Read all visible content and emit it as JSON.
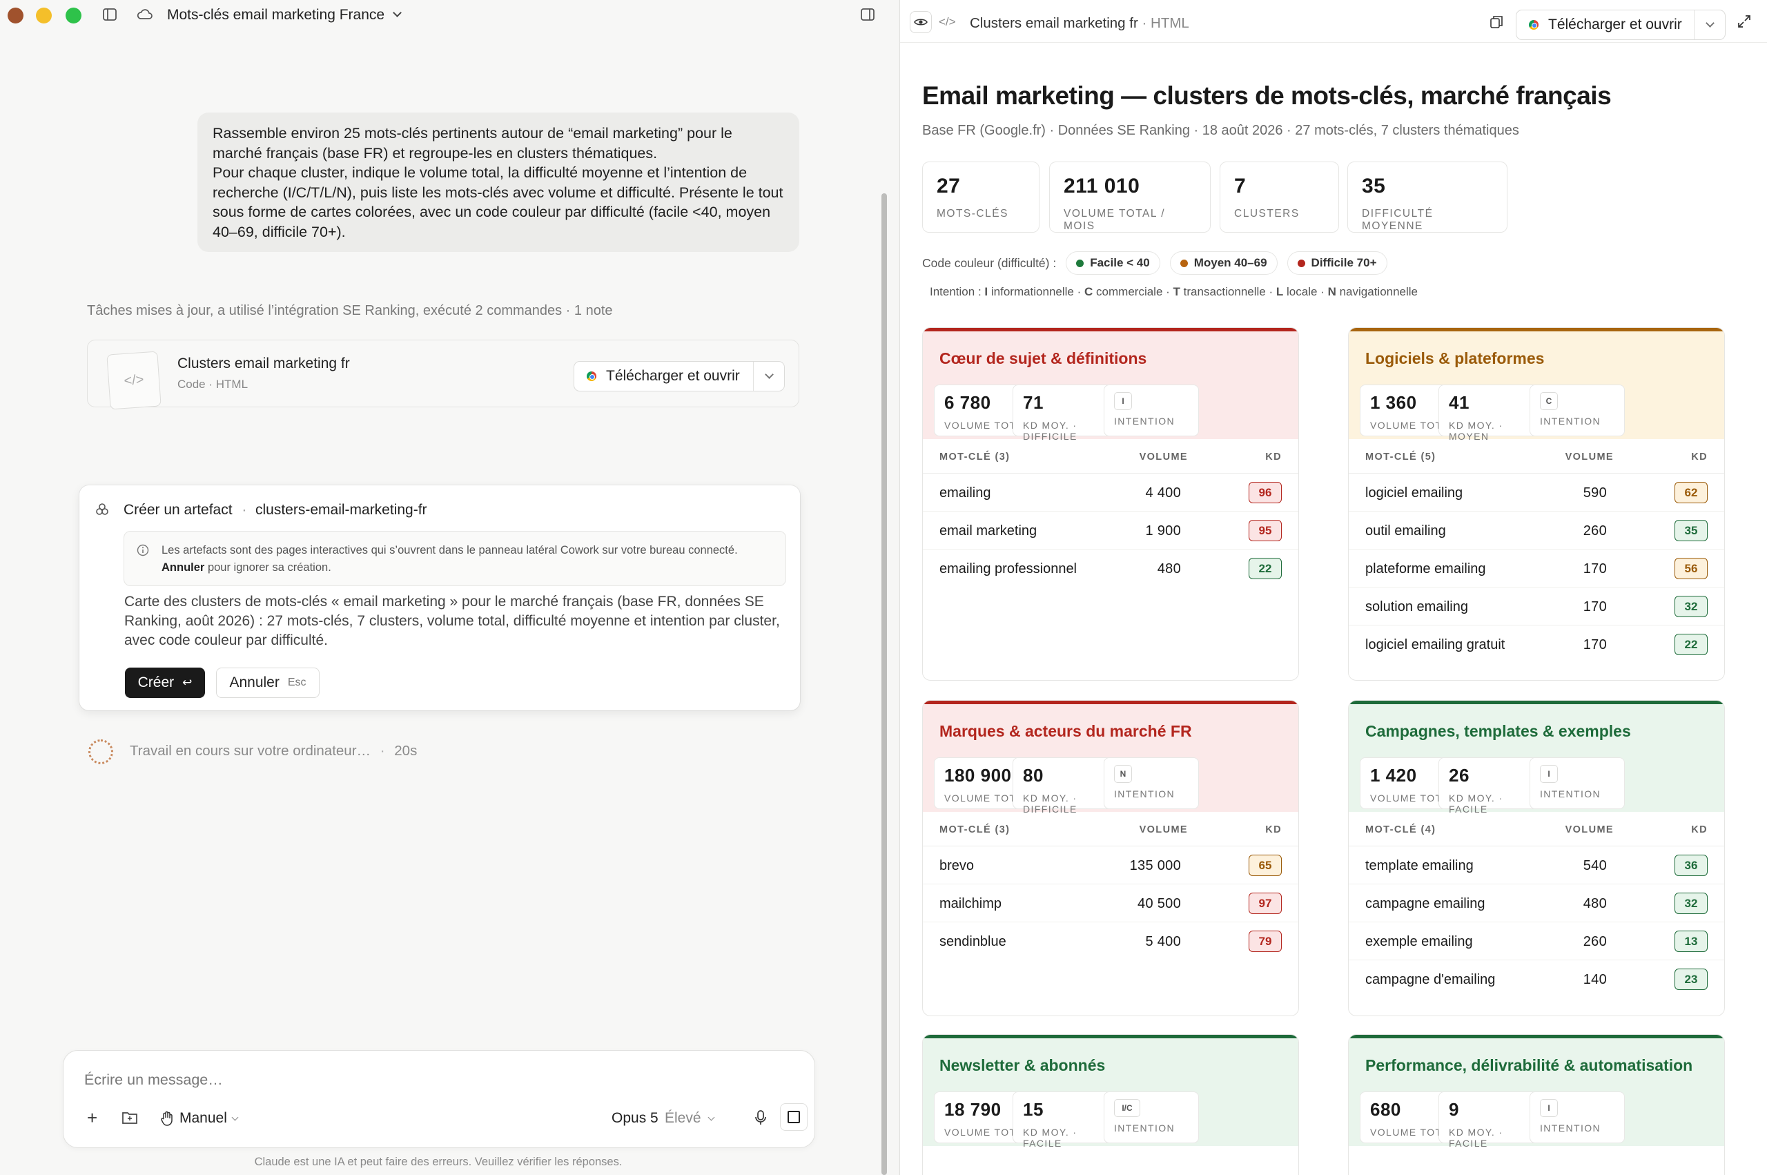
{
  "window": {
    "title": "Mots-clés email marketing France"
  },
  "chat": {
    "user_message": "Rassemble environ 25 mots-clés pertinents autour de “email marketing” pour le marché français (base FR) et regroupe-les en clusters thématiques.\nPour chaque cluster, indique le volume total, la difficulté moyenne et l’intention de recherche (I/C/T/L/N), puis liste les mots-clés avec volume et difficulté. Présente le tout sous forme de cartes colorées, avec un code couleur par difficulté (facile <40, moyen 40–69, difficile 70+).",
    "status_line": "Tâches mises à jour, a utilisé l’intégration SE Ranking, exécuté 2 commandes · 1 note",
    "artifact": {
      "name": "Clusters email marketing fr",
      "sub": "Code · HTML",
      "download_label": "Télécharger et ouvrir"
    },
    "create_card": {
      "title": "Créer un artefact",
      "separator": "·",
      "slug": "clusters-email-marketing-fr",
      "note_text": "Les artefacts sont des pages interactives qui s’ouvrent dans le panneau latéral Cowork sur votre bureau connecté.",
      "note_cancel_bold": "Annuler",
      "note_cancel_rest": "pour ignorer sa création.",
      "description": "Carte des clusters de mots-clés « email marketing » pour le marché français (base FR, données SE Ranking, août 2026) : 27 mots-clés, 7 clusters, volume total, difficulté moyenne et intention par cluster, avec code couleur par difficulté.",
      "create_label": "Créer",
      "create_key": "↩",
      "cancel_label": "Annuler",
      "cancel_key": "Esc"
    },
    "working": {
      "text": "Travail en cours sur votre ordinateur…",
      "separator": "·",
      "time": "20s"
    },
    "composer": {
      "placeholder": "Écrire un message…",
      "mode_label": "Manuel",
      "model": "Opus 5",
      "level": "Élevé"
    },
    "disclaimer": "Claude est une IA et peut faire des erreurs. Veuillez vérifier les réponses."
  },
  "preview": {
    "title": "Clusters email marketing fr",
    "title_sub": "· HTML",
    "download_label": "Télécharger et ouvrir"
  },
  "report": {
    "title": "Email marketing — clusters de mots-clés, marché français",
    "subtitle": "Base FR (Google.fr) · Données SE Ranking · 18 août 2026 · 27 mots-clés, 7 clusters thématiques",
    "stats": [
      {
        "value": "27",
        "label": "MOTS-CLÉS"
      },
      {
        "value": "211 010",
        "label": "VOLUME TOTAL / MOIS"
      },
      {
        "value": "7",
        "label": "CLUSTERS"
      },
      {
        "value": "35",
        "label": "DIFFICULTÉ MOYENNE"
      }
    ],
    "legend_label": "Code couleur (difficulté) :",
    "legend": [
      {
        "label": "Facile < 40",
        "color": "#1e7a3c"
      },
      {
        "label": "Moyen 40–69",
        "color": "#b8640f"
      },
      {
        "label": "Difficile 70+",
        "color": "#b3261e"
      }
    ],
    "intent_legend": {
      "prefix": "Intention :",
      "items": [
        {
          "key": "I",
          "text": "informationnelle"
        },
        {
          "key": "C",
          "text": "commerciale"
        },
        {
          "key": "T",
          "text": "transactionnelle"
        },
        {
          "key": "L",
          "text": "locale"
        },
        {
          "key": "N",
          "text": "navigationnelle"
        }
      ],
      "separator": "·"
    },
    "columns": {
      "volume": "VOLUME",
      "kd": "KD"
    },
    "volume_label": "VOLUME TOTAL",
    "intent_label": "INTENTION",
    "clusters": [
      {
        "title": "Cœur de sujet & définitions",
        "theme": "hard",
        "volume": "6 780",
        "kd": "71",
        "kd_label": "KD MOY. · DIFFICILE",
        "intent": "I",
        "kw_header": "MOT-CLÉ (3)",
        "rows": [
          {
            "kw": "emailing",
            "vol": "4 400",
            "kd": "96",
            "level": "hard"
          },
          {
            "kw": "email marketing",
            "vol": "1 900",
            "kd": "95",
            "level": "hard"
          },
          {
            "kw": "emailing professionnel",
            "vol": "480",
            "kd": "22",
            "level": "easy"
          }
        ]
      },
      {
        "title": "Logiciels & plateformes",
        "theme": "mid",
        "volume": "1 360",
        "kd": "41",
        "kd_label": "KD MOY. · MOYEN",
        "intent": "C",
        "kw_header": "MOT-CLÉ (5)",
        "rows": [
          {
            "kw": "logiciel emailing",
            "vol": "590",
            "kd": "62",
            "level": "mid"
          },
          {
            "kw": "outil emailing",
            "vol": "260",
            "kd": "35",
            "level": "easy"
          },
          {
            "kw": "plateforme emailing",
            "vol": "170",
            "kd": "56",
            "level": "mid"
          },
          {
            "kw": "solution emailing",
            "vol": "170",
            "kd": "32",
            "level": "easy"
          },
          {
            "kw": "logiciel emailing gratuit",
            "vol": "170",
            "kd": "22",
            "level": "easy"
          }
        ]
      },
      {
        "title": "Marques & acteurs du marché FR",
        "theme": "hard",
        "volume": "180 900",
        "kd": "80",
        "kd_label": "KD MOY. · DIFFICILE",
        "intent": "N",
        "kw_header": "MOT-CLÉ (3)",
        "rows": [
          {
            "kw": "brevo",
            "vol": "135 000",
            "kd": "65",
            "level": "mid"
          },
          {
            "kw": "mailchimp",
            "vol": "40 500",
            "kd": "97",
            "level": "hard"
          },
          {
            "kw": "sendinblue",
            "vol": "5 400",
            "kd": "79",
            "level": "hard"
          }
        ]
      },
      {
        "title": "Campagnes, templates & exemples",
        "theme": "easy",
        "volume": "1 420",
        "kd": "26",
        "kd_label": "KD MOY. · FACILE",
        "intent": "I",
        "kw_header": "MOT-CLÉ (4)",
        "rows": [
          {
            "kw": "template emailing",
            "vol": "540",
            "kd": "36",
            "level": "easy"
          },
          {
            "kw": "campagne emailing",
            "vol": "480",
            "kd": "32",
            "level": "easy"
          },
          {
            "kw": "exemple emailing",
            "vol": "260",
            "kd": "13",
            "level": "easy"
          },
          {
            "kw": "campagne d'emailing",
            "vol": "140",
            "kd": "23",
            "level": "easy"
          }
        ]
      },
      {
        "title": "Newsletter & abonnés",
        "theme": "easy",
        "volume": "18 790",
        "kd": "15",
        "kd_label": "KD MOY. · FACILE",
        "intent": "I/C",
        "kw_header": "",
        "rows": []
      },
      {
        "title": "Performance, délivrabilité & automatisation",
        "theme": "easy",
        "volume": "680",
        "kd": "9",
        "kd_label": "KD MOY. · FACILE",
        "intent": "I",
        "kw_header": "",
        "rows": []
      }
    ]
  },
  "colors": {
    "hard_bg": "#fbe9e9",
    "hard_accent": "#b3261e",
    "hard_title": "#b3261e",
    "mid_bg": "#fdf3de",
    "mid_accent": "#a8650f",
    "mid_title": "#9a5a09",
    "easy_bg": "#e9f5ec",
    "easy_accent": "#1e6b3a",
    "easy_title": "#1e6b3a"
  }
}
